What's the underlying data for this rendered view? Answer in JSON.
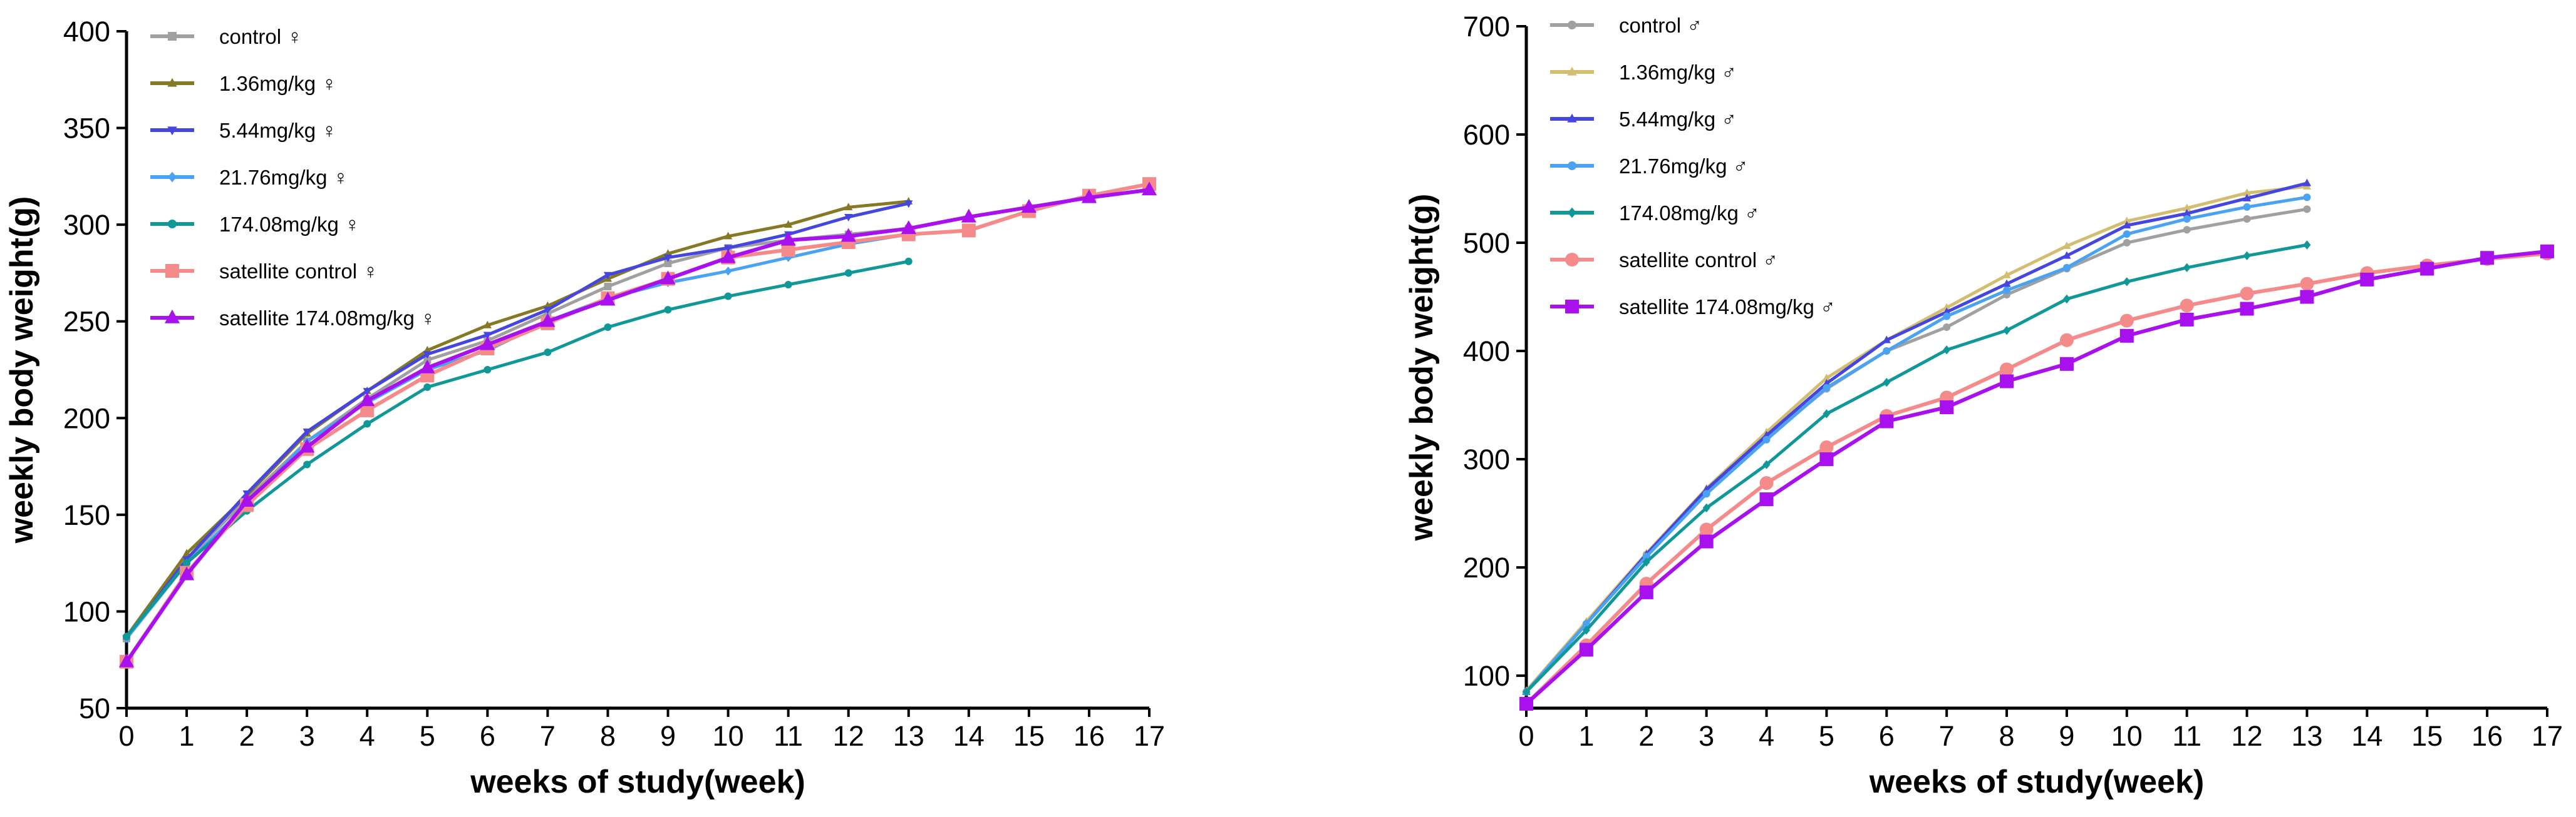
{
  "chart_data": [
    {
      "type": "line",
      "title": "",
      "xlabel": "weeks of study(week)",
      "ylabel": "weekly body weight(g)",
      "xlim": [
        0,
        17
      ],
      "ylim": [
        50,
        400
      ],
      "x_ticks": [
        0,
        1,
        2,
        3,
        4,
        5,
        6,
        7,
        8,
        9,
        10,
        11,
        12,
        13,
        14,
        15,
        16,
        17
      ],
      "y_ticks": [
        50,
        100,
        150,
        200,
        250,
        300,
        350,
        400
      ],
      "grid": false,
      "legend_position": "top-left",
      "series": [
        {
          "name": "control ♀",
          "color": "#a0a0a0",
          "marker": "square",
          "x": [
            0,
            1,
            2,
            3,
            4,
            5,
            6,
            7,
            8,
            9,
            10,
            11,
            12,
            13
          ],
          "values": [
            86,
            127,
            158,
            188,
            210,
            230,
            240,
            254,
            268,
            280,
            288,
            292,
            295,
            298
          ]
        },
        {
          "name": "1.36mg/kg ♀",
          "color": "#857925",
          "marker": "triangle",
          "x": [
            0,
            1,
            2,
            3,
            4,
            5,
            6,
            7,
            8,
            9,
            10,
            11,
            12,
            13
          ],
          "values": [
            87,
            130,
            160,
            192,
            214,
            235,
            248,
            258,
            272,
            285,
            294,
            300,
            309,
            312
          ]
        },
        {
          "name": "5.44mg/kg ♀",
          "color": "#4545e0",
          "marker": "triangle-down",
          "x": [
            0,
            1,
            2,
            3,
            4,
            5,
            6,
            7,
            8,
            9,
            10,
            11,
            12,
            13
          ],
          "values": [
            86,
            127,
            161,
            193,
            214,
            233,
            243,
            256,
            274,
            283,
            288,
            295,
            304,
            311
          ]
        },
        {
          "name": "21.76mg/kg ♀",
          "color": "#4aa3f2",
          "marker": "diamond",
          "x": [
            0,
            1,
            2,
            3,
            4,
            5,
            6,
            7,
            8,
            9,
            10,
            11,
            12,
            13
          ],
          "values": [
            86,
            125,
            155,
            188,
            208,
            225,
            235,
            250,
            262,
            270,
            276,
            283,
            290,
            295
          ]
        },
        {
          "name": "174.08mg/kg ♀",
          "color": "#109898",
          "marker": "circle",
          "x": [
            0,
            1,
            2,
            3,
            4,
            5,
            6,
            7,
            8,
            9,
            10,
            11,
            12,
            13
          ],
          "values": [
            87,
            125,
            152,
            176,
            197,
            216,
            225,
            234,
            247,
            256,
            263,
            269,
            275,
            281
          ]
        },
        {
          "name": "satellite control ♀",
          "color": "#f58a8a",
          "marker": "square",
          "x": [
            0,
            1,
            2,
            3,
            4,
            5,
            6,
            7,
            8,
            9,
            10,
            11,
            12,
            13,
            14,
            15,
            16,
            17
          ],
          "values": [
            74,
            120,
            155,
            184,
            204,
            222,
            236,
            249,
            262,
            272,
            283,
            287,
            291,
            295,
            297,
            307,
            315,
            321
          ]
        },
        {
          "name": "satellite 174.08mg/kg ♀",
          "color": "#a811ee",
          "marker": "triangle",
          "x": [
            0,
            1,
            2,
            3,
            4,
            5,
            6,
            7,
            8,
            9,
            10,
            11,
            12,
            13,
            14,
            15,
            16,
            17
          ],
          "values": [
            74,
            119,
            157,
            185,
            209,
            226,
            238,
            250,
            261,
            272,
            283,
            292,
            294,
            298,
            304,
            309,
            314,
            318
          ]
        }
      ]
    },
    {
      "type": "line",
      "title": "",
      "xlabel": "weeks of study(week)",
      "ylabel": "weekly body weight(g)",
      "xlim": [
        0,
        17
      ],
      "ylim": [
        70,
        700
      ],
      "x_ticks": [
        0,
        1,
        2,
        3,
        4,
        5,
        6,
        7,
        8,
        9,
        10,
        11,
        12,
        13,
        14,
        15,
        16,
        17
      ],
      "y_ticks": [
        100,
        200,
        300,
        400,
        500,
        600,
        700
      ],
      "grid": false,
      "legend_position": "top-left",
      "series": [
        {
          "name": "control ♂",
          "color": "#a0a0a0",
          "marker": "circle",
          "x": [
            0,
            1,
            2,
            3,
            4,
            5,
            6,
            7,
            8,
            9,
            10,
            11,
            12,
            13
          ],
          "values": [
            85,
            148,
            212,
            270,
            320,
            365,
            400,
            422,
            452,
            476,
            500,
            512,
            522,
            531
          ]
        },
        {
          "name": "1.36mg/kg ♂",
          "color": "#d2bd70",
          "marker": "triangle",
          "x": [
            0,
            1,
            2,
            3,
            4,
            5,
            6,
            7,
            8,
            9,
            10,
            11,
            12,
            13
          ],
          "values": [
            86,
            150,
            213,
            273,
            325,
            375,
            410,
            440,
            470,
            497,
            520,
            532,
            546,
            552
          ]
        },
        {
          "name": "5.44mg/kg ♂",
          "color": "#4545e0",
          "marker": "triangle",
          "x": [
            0,
            1,
            2,
            3,
            4,
            5,
            6,
            7,
            8,
            9,
            10,
            11,
            12,
            13
          ],
          "values": [
            85,
            148,
            212,
            272,
            322,
            370,
            410,
            436,
            462,
            488,
            516,
            527,
            541,
            555
          ]
        },
        {
          "name": "21.76mg/kg ♂",
          "color": "#4aa3f2",
          "marker": "circle",
          "x": [
            0,
            1,
            2,
            3,
            4,
            5,
            6,
            7,
            8,
            9,
            10,
            11,
            12,
            13
          ],
          "values": [
            85,
            148,
            210,
            268,
            318,
            366,
            400,
            432,
            456,
            477,
            508,
            522,
            533,
            542
          ]
        },
        {
          "name": "174.08mg/kg ♂",
          "color": "#109898",
          "marker": "diamond",
          "x": [
            0,
            1,
            2,
            3,
            4,
            5,
            6,
            7,
            8,
            9,
            10,
            11,
            12,
            13
          ],
          "values": [
            85,
            142,
            205,
            255,
            295,
            342,
            371,
            401,
            419,
            448,
            464,
            477,
            488,
            498
          ]
        },
        {
          "name": "satellite control ♂",
          "color": "#f58a8a",
          "marker": "circle",
          "x": [
            0,
            1,
            2,
            3,
            4,
            5,
            6,
            7,
            8,
            9,
            10,
            11,
            12,
            13,
            14,
            15,
            16,
            17
          ],
          "values": [
            74,
            128,
            185,
            235,
            278,
            311,
            340,
            357,
            383,
            410,
            428,
            442,
            453,
            462,
            472,
            479,
            485,
            490
          ]
        },
        {
          "name": "satellite 174.08mg/kg ♂",
          "color": "#a811ee",
          "marker": "square",
          "x": [
            0,
            1,
            2,
            3,
            4,
            5,
            6,
            7,
            8,
            9,
            10,
            11,
            12,
            13,
            14,
            15,
            16,
            17
          ],
          "values": [
            74,
            124,
            177,
            224,
            263,
            300,
            335,
            348,
            372,
            388,
            414,
            429,
            439,
            450,
            466,
            476,
            486,
            492
          ]
        }
      ]
    }
  ]
}
